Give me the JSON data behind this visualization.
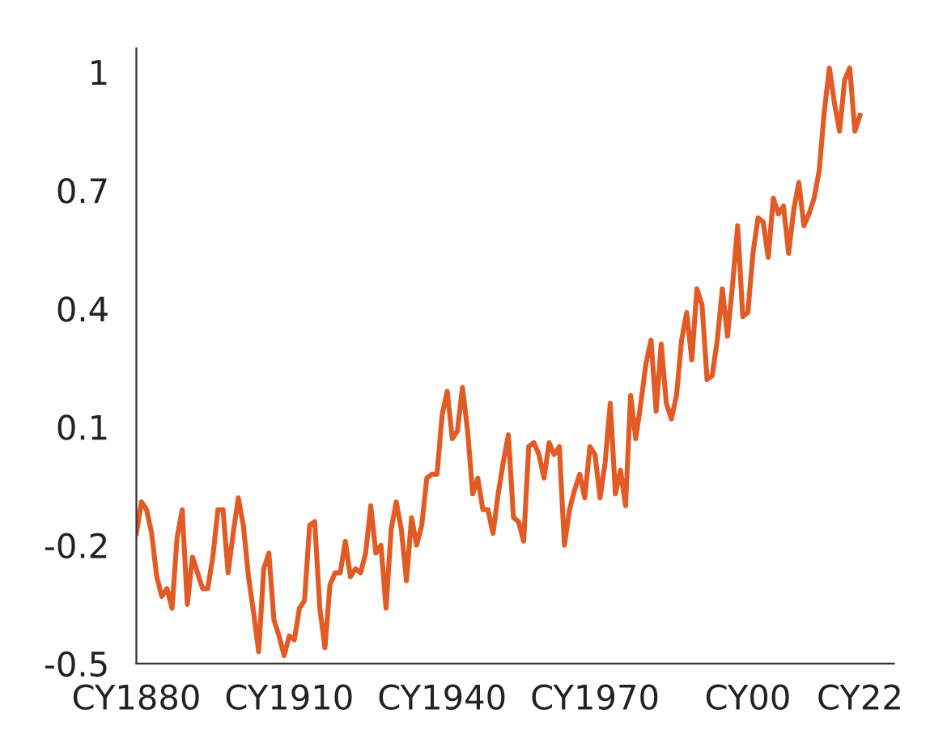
{
  "chart_data": {
    "type": "line",
    "categories": [
      "CY1880",
      null,
      null,
      null,
      null,
      null,
      null,
      null,
      null,
      null,
      null,
      null,
      null,
      null,
      null,
      null,
      null,
      null,
      null,
      null,
      null,
      null,
      null,
      null,
      null,
      null,
      null,
      null,
      null,
      null,
      "CY1910",
      null,
      null,
      null,
      null,
      null,
      null,
      null,
      null,
      null,
      null,
      null,
      null,
      null,
      null,
      null,
      null,
      null,
      null,
      null,
      null,
      null,
      null,
      null,
      null,
      null,
      null,
      null,
      null,
      null,
      "CY1940",
      null,
      null,
      null,
      null,
      null,
      null,
      null,
      null,
      null,
      null,
      null,
      null,
      null,
      null,
      null,
      null,
      null,
      null,
      null,
      null,
      null,
      null,
      null,
      null,
      null,
      null,
      null,
      null,
      null,
      "CY1970",
      null,
      null,
      null,
      null,
      null,
      null,
      null,
      null,
      null,
      null,
      null,
      null,
      null,
      null,
      null,
      null,
      null,
      null,
      null,
      null,
      null,
      null,
      null,
      null,
      null,
      null,
      null,
      null,
      null,
      "CY00",
      null,
      null,
      null,
      null,
      null,
      null,
      null,
      null,
      null,
      null,
      null,
      null,
      null,
      null,
      null,
      null,
      null,
      null,
      null,
      null,
      null,
      "CY22"
    ],
    "series": [
      {
        "color": "#e35b24",
        "values": [
          -0.17,
          -0.09,
          -0.11,
          -0.17,
          -0.28,
          -0.33,
          -0.31,
          -0.36,
          -0.18,
          -0.11,
          -0.35,
          -0.23,
          -0.27,
          -0.31,
          -0.31,
          -0.23,
          -0.11,
          -0.11,
          -0.27,
          -0.17,
          -0.08,
          -0.15,
          -0.28,
          -0.37,
          -0.47,
          -0.26,
          -0.22,
          -0.39,
          -0.43,
          -0.48,
          -0.43,
          -0.44,
          -0.36,
          -0.34,
          -0.15,
          -0.14,
          -0.36,
          -0.46,
          -0.3,
          -0.27,
          -0.27,
          -0.19,
          -0.28,
          -0.26,
          -0.27,
          -0.22,
          -0.1,
          -0.22,
          -0.2,
          -0.36,
          -0.16,
          -0.09,
          -0.16,
          -0.29,
          -0.13,
          -0.2,
          -0.15,
          -0.03,
          -0.02,
          -0.02,
          0.13,
          0.19,
          0.07,
          0.09,
          0.2,
          0.09,
          -0.07,
          -0.03,
          -0.11,
          -0.11,
          -0.17,
          -0.07,
          0.01,
          0.08,
          -0.13,
          -0.14,
          -0.19,
          0.05,
          0.06,
          0.03,
          -0.03,
          0.06,
          0.03,
          0.05,
          -0.2,
          -0.11,
          -0.06,
          -0.02,
          -0.08,
          0.05,
          0.03,
          -0.08,
          0.01,
          0.16,
          -0.07,
          -0.01,
          -0.1,
          0.18,
          0.07,
          0.16,
          0.26,
          0.32,
          0.14,
          0.31,
          0.16,
          0.12,
          0.18,
          0.32,
          0.39,
          0.27,
          0.45,
          0.41,
          0.22,
          0.23,
          0.32,
          0.45,
          0.33,
          0.46,
          0.61,
          0.38,
          0.39,
          0.54,
          0.63,
          0.62,
          0.53,
          0.68,
          0.64,
          0.66,
          0.54,
          0.65,
          0.72,
          0.61,
          0.64,
          0.68,
          0.75,
          0.9,
          1.01,
          0.92,
          0.85,
          0.98,
          1.01,
          0.85,
          0.89
        ]
      }
    ],
    "ylim": [
      -0.5,
      1.06
    ],
    "yticks": [
      -0.5,
      -0.2,
      0.1,
      0.4,
      0.7,
      1
    ],
    "grid": false,
    "marker": "none",
    "line_style": "solid"
  }
}
